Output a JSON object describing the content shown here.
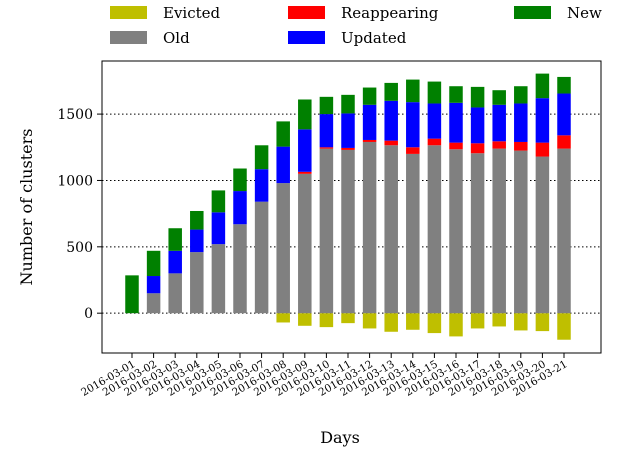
{
  "chart_data": {
    "type": "bar",
    "stacked": true,
    "xlabel": "Days",
    "ylabel": "Number of clusters",
    "ylim": [
      -300,
      1900
    ],
    "yticks": [
      0,
      500,
      1000,
      1500
    ],
    "grid": "horizontal-dotted",
    "legend_placement": "top",
    "categories": [
      "2016-03-01",
      "2016-03-02",
      "2016-03-03",
      "2016-03-04",
      "2016-03-05",
      "2016-03-06",
      "2016-03-07",
      "2016-03-08",
      "2016-03-09",
      "2016-03-10",
      "2016-03-11",
      "2016-03-12",
      "2016-03-13",
      "2016-03-14",
      "2016-03-15",
      "2016-03-16",
      "2016-03-17",
      "2016-03-18",
      "2016-03-19",
      "2016-03-20",
      "2016-03-21"
    ],
    "series": [
      {
        "name": "Evicted",
        "color": "#bfbf00",
        "values": [
          0,
          0,
          0,
          0,
          0,
          0,
          0,
          -70,
          -95,
          -105,
          -75,
          -115,
          -140,
          -125,
          -150,
          -175,
          -115,
          -100,
          -130,
          -135,
          -200
        ]
      },
      {
        "name": "Old",
        "color": "#808080",
        "values": [
          0,
          150,
          300,
          460,
          520,
          670,
          840,
          980,
          1050,
          1240,
          1230,
          1290,
          1265,
          1200,
          1265,
          1235,
          1205,
          1240,
          1225,
          1180,
          1240
        ]
      },
      {
        "name": "Reappearing",
        "color": "#ff0000",
        "values": [
          0,
          0,
          0,
          0,
          0,
          0,
          0,
          0,
          15,
          10,
          15,
          15,
          35,
          50,
          50,
          50,
          75,
          55,
          65,
          105,
          100
        ]
      },
      {
        "name": "Updated",
        "color": "#0000ff",
        "values": [
          0,
          130,
          170,
          170,
          240,
          250,
          245,
          275,
          320,
          250,
          260,
          265,
          300,
          340,
          265,
          300,
          270,
          275,
          290,
          335,
          315
        ]
      },
      {
        "name": "New",
        "color": "#008000",
        "values": [
          285,
          190,
          170,
          140,
          165,
          170,
          180,
          190,
          225,
          130,
          140,
          130,
          135,
          170,
          165,
          125,
          155,
          110,
          130,
          185,
          125
        ]
      }
    ]
  },
  "legend": [
    {
      "label": "Evicted",
      "color": "#bfbf00"
    },
    {
      "label": "Reappearing",
      "color": "#ff0000"
    },
    {
      "label": "New",
      "color": "#008000"
    },
    {
      "label": "Old",
      "color": "#808080"
    },
    {
      "label": "Updated",
      "color": "#0000ff"
    }
  ]
}
